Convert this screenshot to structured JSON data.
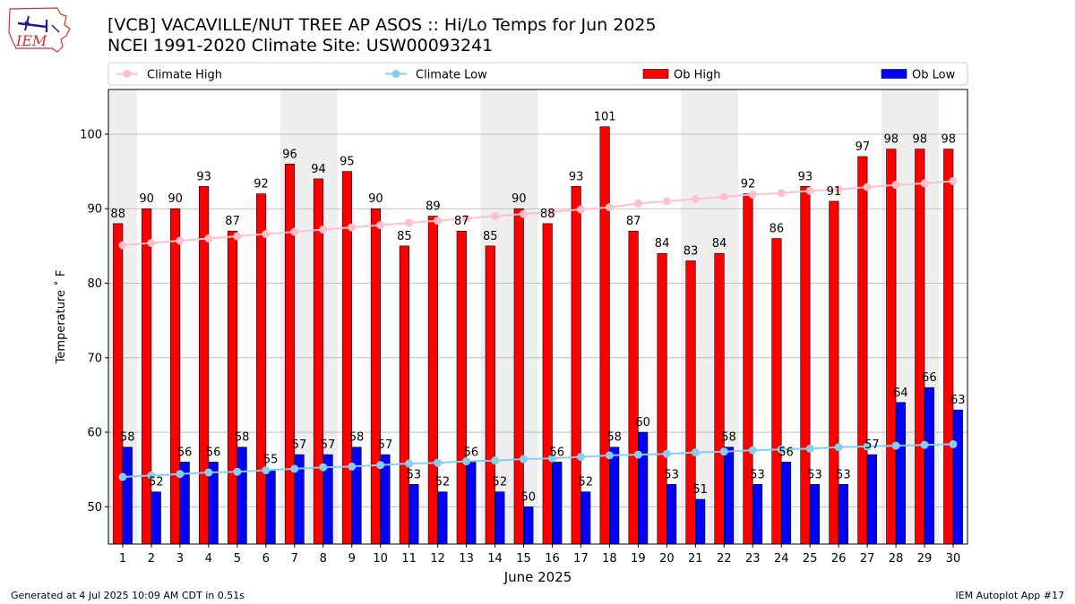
{
  "header": {
    "title": "[VCB] VACAVILLE/NUT TREE AP ASOS :: Hi/Lo Temps for Jun 2025",
    "subtitle": "NCEI 1991-2020 Climate Site: USW00093241",
    "logo_text": "IEM"
  },
  "footer": {
    "generated": "Generated at 4 Jul 2025 10:09 AM CDT in 0.51s",
    "app": "IEM Autoplot App #17"
  },
  "colors": {
    "ob_high": "#ff0000",
    "ob_low": "#0000ff",
    "climate_high": "#ffc0cb",
    "climate_low": "#87ceeb",
    "weekend_shade": "#eeeeee",
    "grid": "#b0b0b0"
  },
  "chart_data": {
    "type": "bar",
    "title": "[VCB] VACAVILLE/NUT TREE AP ASOS :: Hi/Lo Temps for Jun 2025",
    "xlabel": "June 2025",
    "ylabel": "Temperature $^\\circ$F",
    "ylim": [
      45,
      106
    ],
    "yticks": [
      50,
      60,
      70,
      80,
      90,
      100
    ],
    "grid": "horizontal",
    "legend_position": "top",
    "categories": [
      "1",
      "2",
      "3",
      "4",
      "5",
      "6",
      "7",
      "8",
      "9",
      "10",
      "11",
      "12",
      "13",
      "14",
      "15",
      "16",
      "17",
      "18",
      "19",
      "20",
      "21",
      "22",
      "23",
      "24",
      "25",
      "26",
      "27",
      "28",
      "29",
      "30"
    ],
    "shaded_days": [
      1,
      7,
      8,
      14,
      15,
      21,
      22,
      28,
      29
    ],
    "legend": [
      "Climate High",
      "Climate Low",
      "Ob High",
      "Ob Low"
    ],
    "series": [
      {
        "name": "Ob High",
        "kind": "bar",
        "values": [
          88,
          90,
          90,
          93,
          87,
          92,
          96,
          94,
          95,
          90,
          85,
          89,
          87,
          85,
          90,
          88,
          93,
          101,
          87,
          84,
          83,
          84,
          92,
          86,
          93,
          91,
          97,
          98,
          98,
          98
        ]
      },
      {
        "name": "Ob Low",
        "kind": "bar",
        "values": [
          58,
          52,
          56,
          56,
          58,
          55,
          57,
          57,
          58,
          57,
          53,
          52,
          56,
          52,
          50,
          56,
          52,
          58,
          60,
          53,
          51,
          58,
          53,
          56,
          53,
          53,
          57,
          64,
          66,
          63
        ]
      },
      {
        "name": "Climate High",
        "kind": "line",
        "values": [
          85.1,
          85.4,
          85.7,
          86.0,
          86.3,
          86.6,
          86.9,
          87.2,
          87.5,
          87.8,
          88.1,
          88.4,
          88.7,
          89.0,
          89.3,
          89.6,
          89.9,
          90.2,
          90.7,
          91.0,
          91.3,
          91.6,
          91.9,
          92.1,
          92.4,
          92.6,
          92.9,
          93.2,
          93.4,
          93.7
        ]
      },
      {
        "name": "Climate Low",
        "kind": "line",
        "values": [
          54.0,
          54.2,
          54.4,
          54.6,
          54.7,
          54.9,
          55.1,
          55.3,
          55.4,
          55.6,
          55.8,
          55.9,
          56.1,
          56.2,
          56.4,
          56.5,
          56.7,
          56.9,
          57.0,
          57.1,
          57.3,
          57.4,
          57.6,
          57.7,
          57.8,
          58.0,
          58.1,
          58.2,
          58.3,
          58.4
        ]
      }
    ]
  }
}
